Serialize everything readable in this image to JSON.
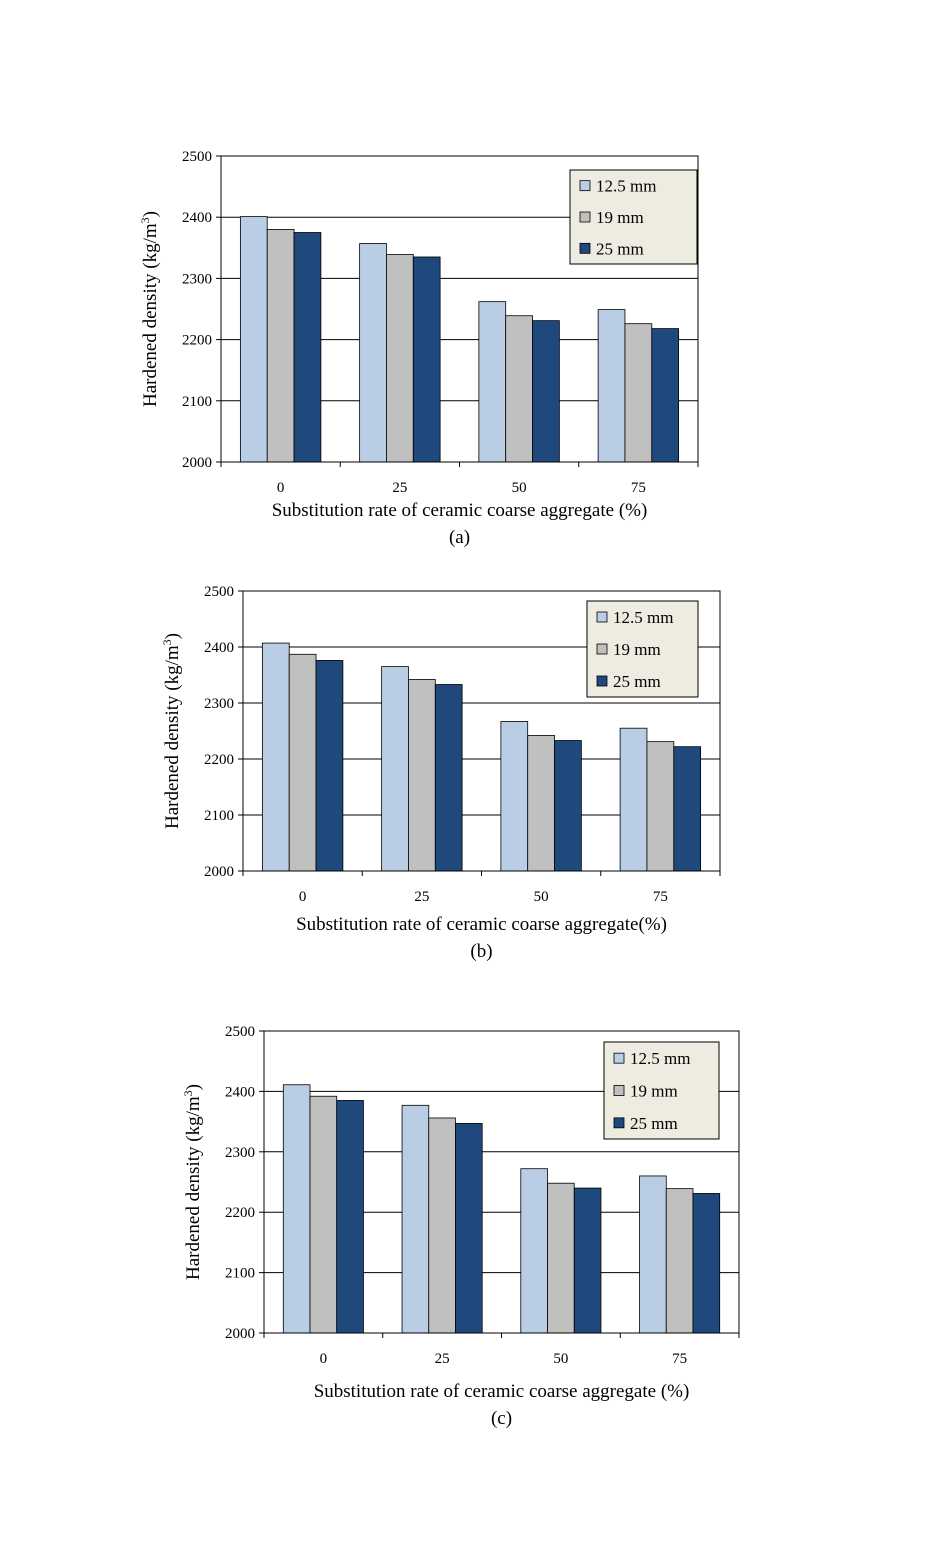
{
  "chart_data": [
    {
      "type": "bar",
      "panel_label": "(a)",
      "categories": [
        "0",
        "25",
        "50",
        "75"
      ],
      "series": [
        {
          "name": "12.5 mm",
          "color": "#B9CDE5",
          "values": [
            2401,
            2357,
            2262,
            2249
          ]
        },
        {
          "name": "19 mm",
          "color": "#C0C0C0",
          "values": [
            2380,
            2339,
            2239,
            2226
          ]
        },
        {
          "name": "25 mm",
          "color": "#1F497D",
          "values": [
            2375,
            2335,
            2231,
            2218
          ]
        }
      ],
      "xlabel": "Substitution rate of ceramic coarse aggregate (%)",
      "ylabel": "Hardened density (kg/m",
      "ylabel_sup": "3",
      "ylabel_end": ")",
      "ylim": [
        2000,
        2500
      ],
      "yticks": [
        "2000",
        "2100",
        "2200",
        "2300",
        "2400",
        "2500"
      ],
      "grid": true,
      "legend_position": "top-right"
    },
    {
      "type": "bar",
      "panel_label": "(b)",
      "categories": [
        "0",
        "25",
        "50",
        "75"
      ],
      "series": [
        {
          "name": "12.5 mm",
          "color": "#B9CDE5",
          "values": [
            2407,
            2365,
            2267,
            2255
          ]
        },
        {
          "name": "19 mm",
          "color": "#C0C0C0",
          "values": [
            2387,
            2342,
            2242,
            2231
          ]
        },
        {
          "name": "25 mm",
          "color": "#1F497D",
          "values": [
            2376,
            2333,
            2233,
            2222
          ]
        }
      ],
      "xlabel": "Substitution rate of ceramic coarse aggregate(%)",
      "ylabel": "Hardened density (kg/m",
      "ylabel_sup": "3",
      "ylabel_end": ")",
      "ylim": [
        2000,
        2500
      ],
      "yticks": [
        "2000",
        "2100",
        "2200",
        "2300",
        "2400",
        "2500"
      ],
      "grid": true,
      "legend_position": "top-right"
    },
    {
      "type": "bar",
      "panel_label": "(c)",
      "categories": [
        "0",
        "25",
        "50",
        "75"
      ],
      "series": [
        {
          "name": "12.5 mm",
          "color": "#B9CDE5",
          "values": [
            2411,
            2377,
            2272,
            2260
          ]
        },
        {
          "name": "19 mm",
          "color": "#C0C0C0",
          "values": [
            2392,
            2356,
            2248,
            2239
          ]
        },
        {
          "name": "25 mm",
          "color": "#1F497D",
          "values": [
            2385,
            2347,
            2240,
            2231
          ]
        }
      ],
      "xlabel": "Substitution rate of ceramic coarse aggregate (%)",
      "ylabel": "Hardened density (kg/m",
      "ylabel_sup": "3",
      "ylabel_end": ")",
      "ylim": [
        2000,
        2500
      ],
      "yticks": [
        "2000",
        "2100",
        "2200",
        "2300",
        "2400",
        "2500"
      ],
      "grid": true,
      "legend_position": "top-right"
    }
  ]
}
